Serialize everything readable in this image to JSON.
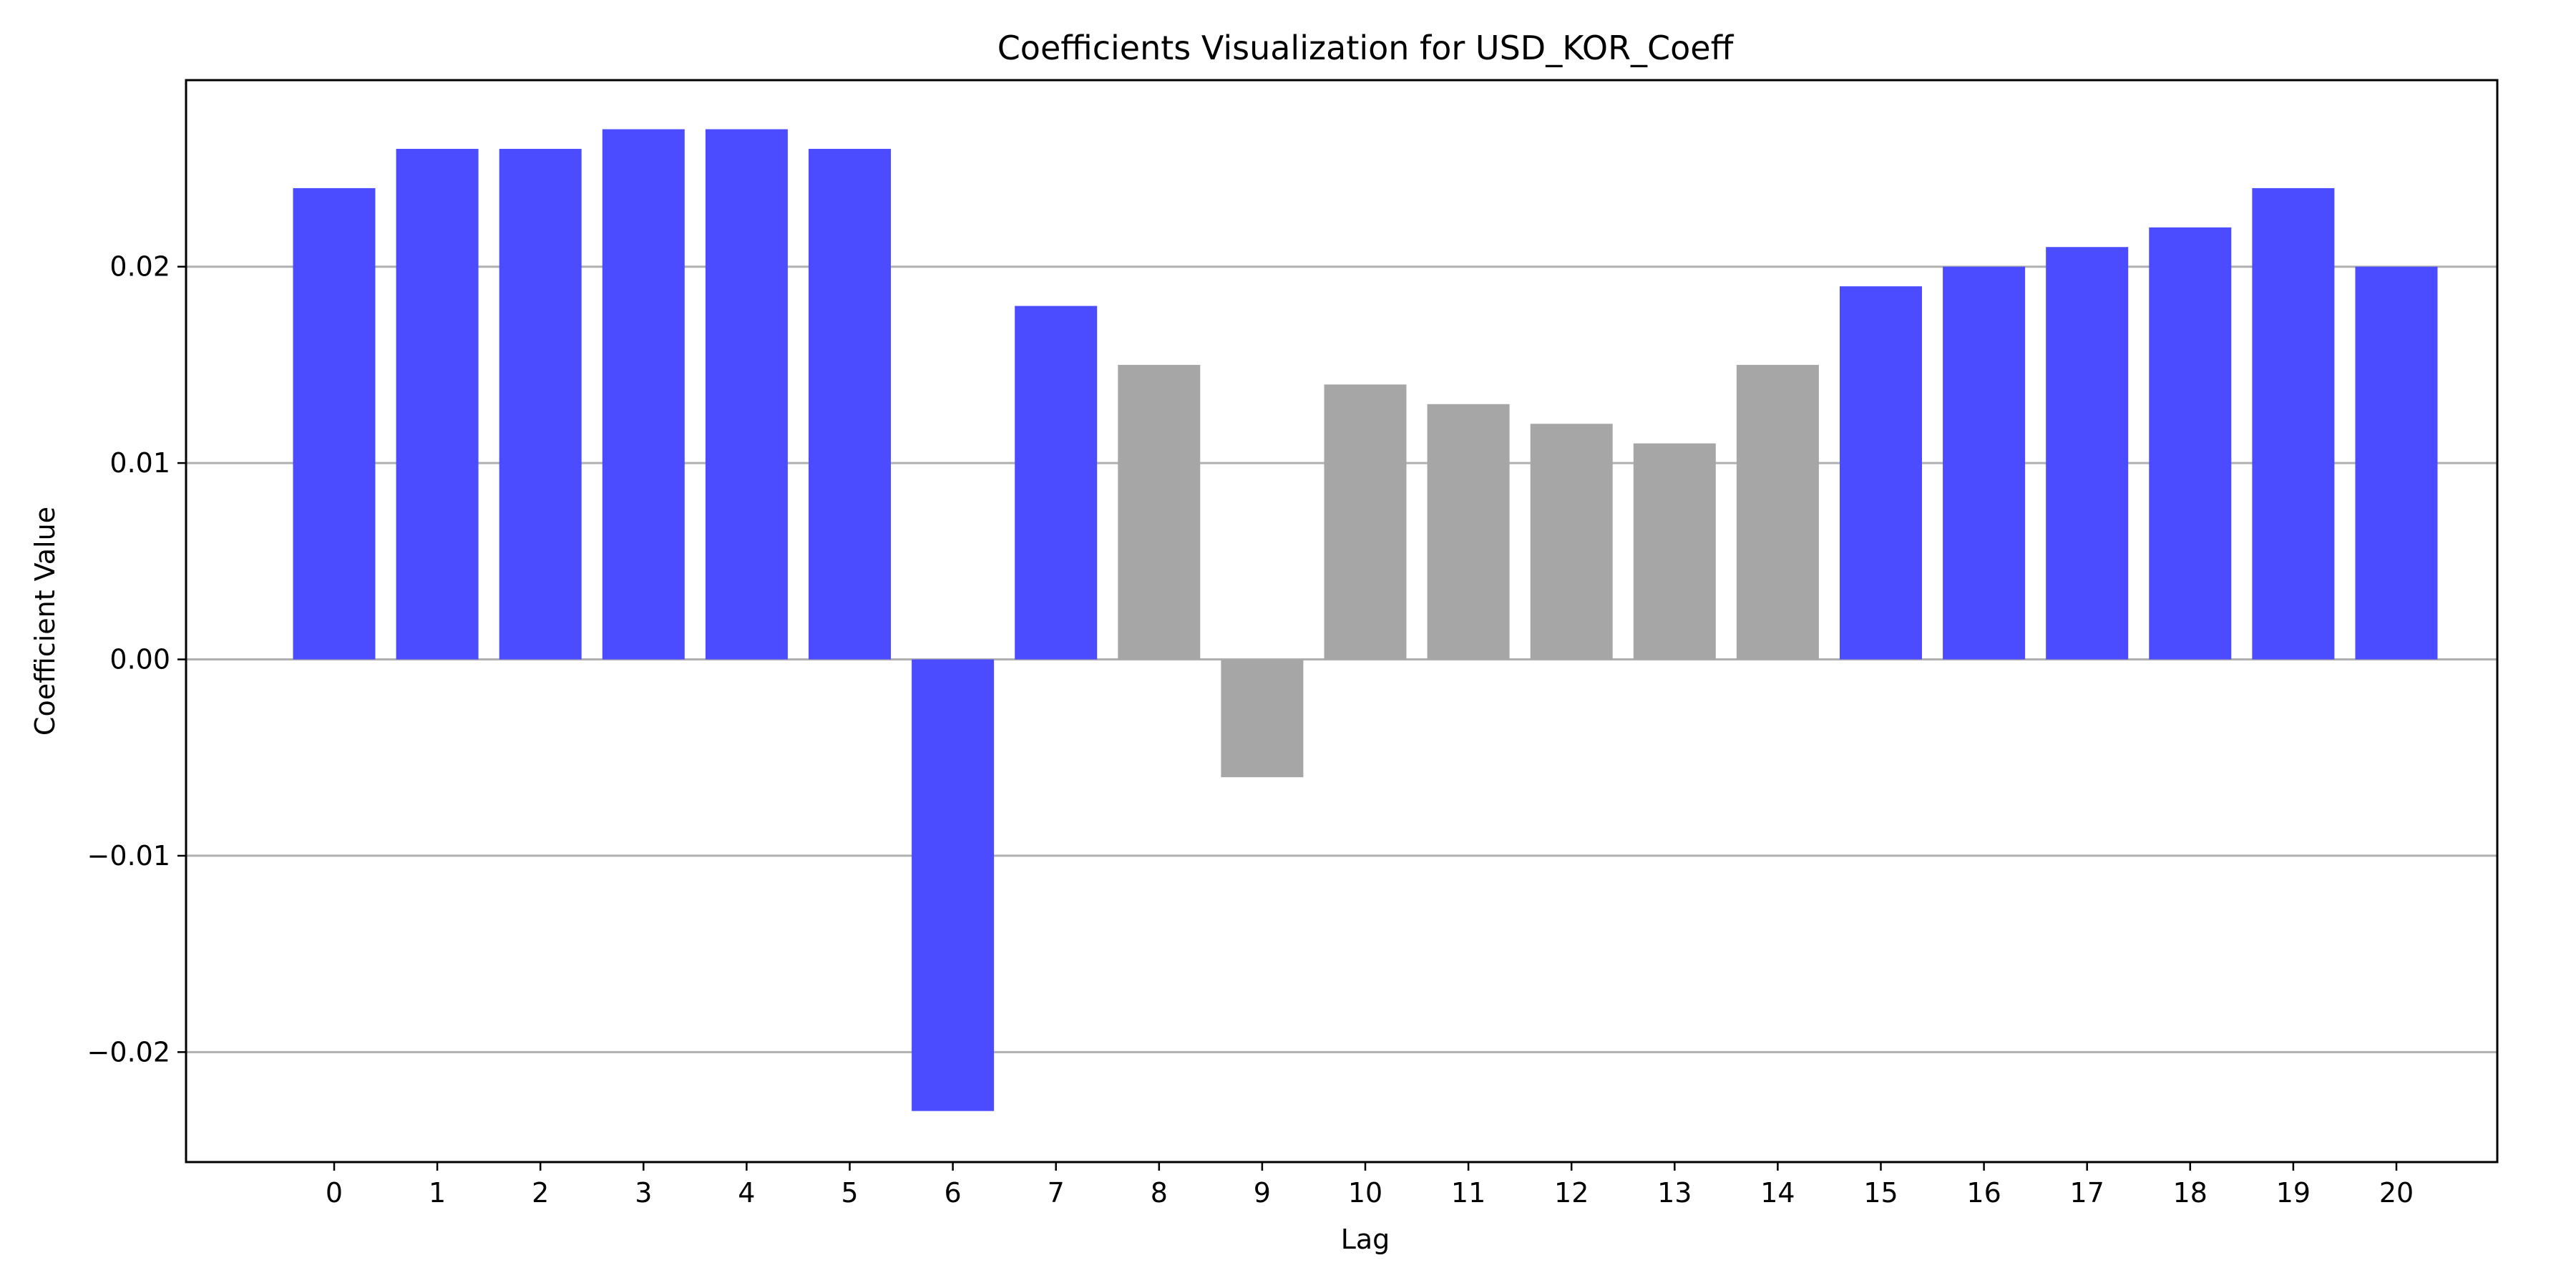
{
  "chart_data": {
    "type": "bar",
    "title": "Coefficients Visualization for USD_KOR_Coeff",
    "xlabel": "Lag",
    "ylabel": "Coefficient Value",
    "categories": [
      "0",
      "1",
      "2",
      "3",
      "4",
      "5",
      "6",
      "7",
      "8",
      "9",
      "10",
      "11",
      "12",
      "13",
      "14",
      "15",
      "16",
      "17",
      "18",
      "19",
      "20"
    ],
    "values": [
      0.024,
      0.026,
      0.026,
      0.027,
      0.027,
      0.026,
      -0.023,
      0.018,
      0.015,
      -0.006,
      0.014,
      0.013,
      0.012,
      0.011,
      0.015,
      0.019,
      0.02,
      0.021,
      0.022,
      0.024,
      0.02
    ],
    "bar_colors": [
      "#4b4bff",
      "#4b4bff",
      "#4b4bff",
      "#4b4bff",
      "#4b4bff",
      "#4b4bff",
      "#4b4bff",
      "#4b4bff",
      "#a6a6a6",
      "#a6a6a6",
      "#a6a6a6",
      "#a6a6a6",
      "#a6a6a6",
      "#a6a6a6",
      "#a6a6a6",
      "#4b4bff",
      "#4b4bff",
      "#4b4bff",
      "#4b4bff",
      "#4b4bff",
      "#4b4bff"
    ],
    "ylim": [
      -0.0256,
      0.0295
    ],
    "yticks": [
      -0.02,
      -0.01,
      0.0,
      0.01,
      0.02
    ],
    "ytick_labels": [
      "−0.02",
      "−0.01",
      "0.00",
      "0.01",
      "0.02"
    ],
    "grid": "y",
    "colors": {
      "significant": "#4b4bff",
      "not_significant": "#a6a6a6",
      "grid": "#b0b0b0"
    }
  }
}
